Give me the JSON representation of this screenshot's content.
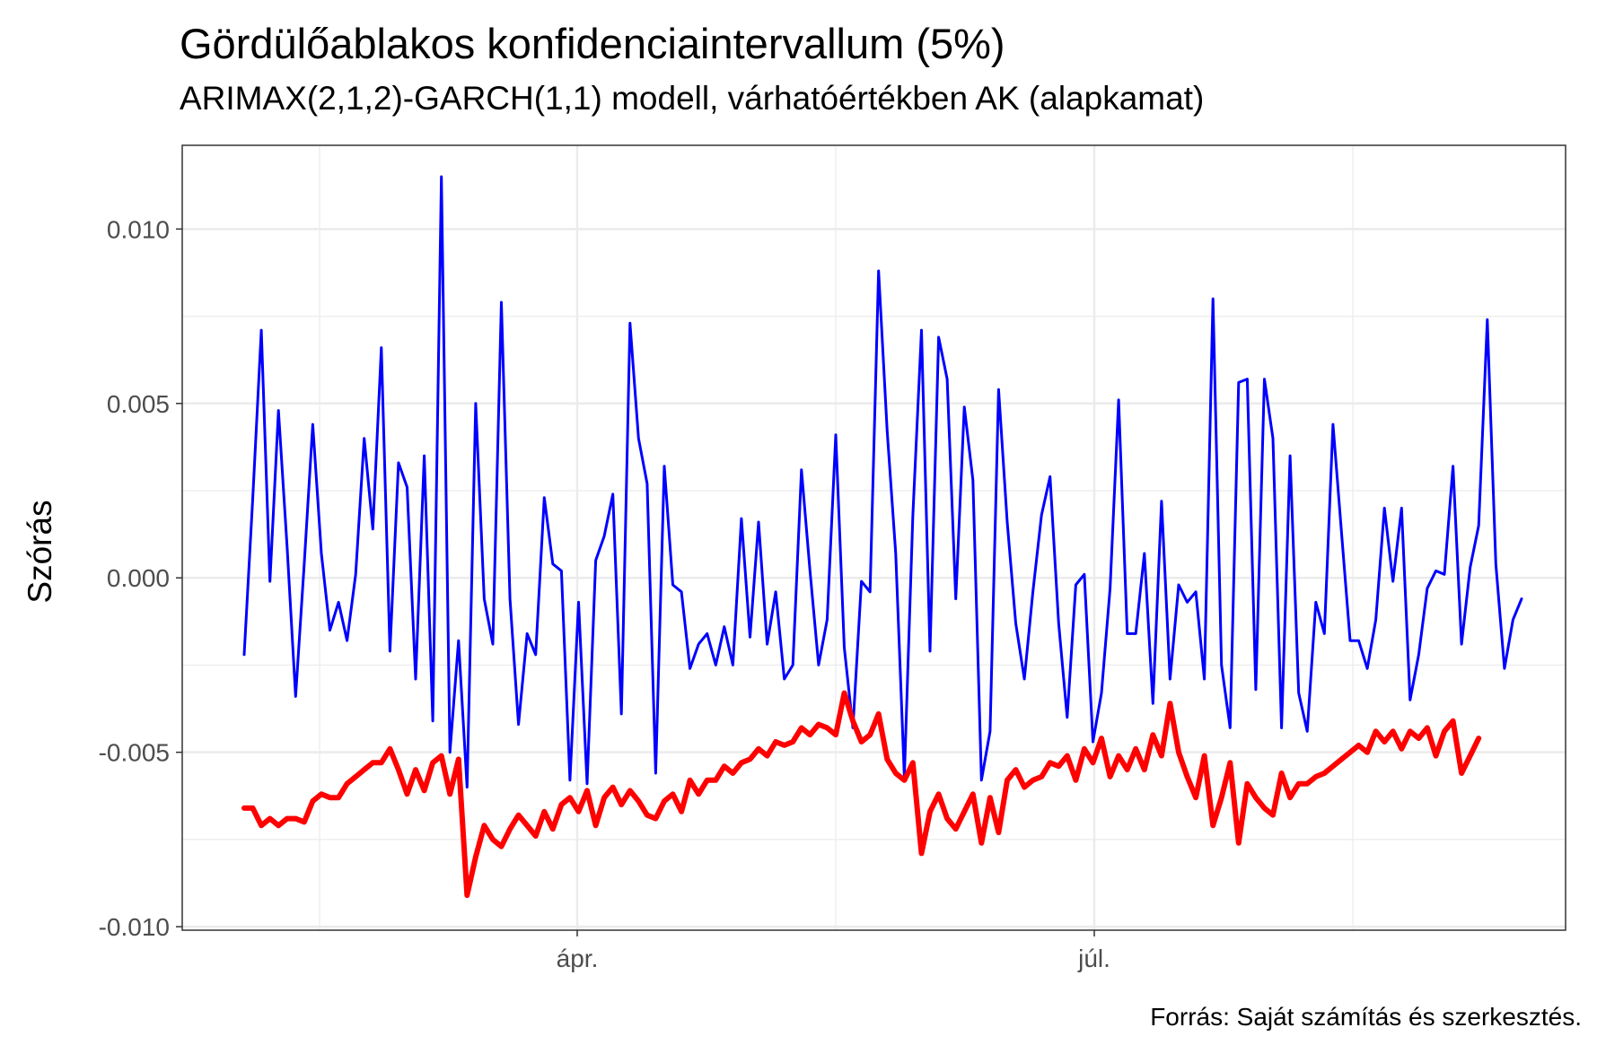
{
  "chart_data": {
    "type": "line",
    "title": "Gördülőablakos konfidenciaintervallum (5%)",
    "subtitle": "ARIMAX(2,1,2)-GARCH(1,1) modell, várhatóértékben AK (alapkamat)",
    "ylabel": "Szórás",
    "xlabel": "",
    "caption": "Forrás: Saját számítás és szerkesztés.",
    "x_ticks": [
      "ápr.",
      "júl."
    ],
    "y_ticks": [
      "0.010",
      "0.005",
      "0.000",
      "-0.005",
      "-0.010"
    ],
    "ylim": [
      -0.0101,
      0.0124
    ],
    "grid": true,
    "legend": "none",
    "series": [
      {
        "color": "#0000ff",
        "values": [
          -0.0022,
          0.0023,
          0.0071,
          -0.0001,
          0.0048,
          0.0009,
          -0.0034,
          0.0004,
          0.0044,
          0.0007,
          -0.0015,
          -0.0007,
          -0.0018,
          0.0001,
          0.004,
          0.0014,
          0.0066,
          -0.0021,
          0.0033,
          0.0026,
          -0.0029,
          0.0035,
          -0.0041,
          0.0115,
          -0.005,
          -0.0018,
          -0.006,
          0.005,
          -0.0006,
          -0.0019,
          0.0079,
          -0.0006,
          -0.0042,
          -0.0016,
          -0.0022,
          0.0023,
          0.0004,
          0.0002,
          -0.0058,
          -0.0007,
          -0.0059,
          0.0005,
          0.0012,
          0.0024,
          -0.0039,
          0.0073,
          0.004,
          0.0027,
          -0.0056,
          0.0032,
          -0.0002,
          -0.0004,
          -0.0026,
          -0.0019,
          -0.0016,
          -0.0025,
          -0.0014,
          -0.0025,
          0.0017,
          -0.0017,
          0.0016,
          -0.0019,
          -0.0004,
          -0.0029,
          -0.0025,
          0.0031,
          0.0002,
          -0.0025,
          -0.0012,
          0.0041,
          -0.002,
          -0.0043,
          -0.0001,
          -0.0004,
          0.0088,
          0.0042,
          0.0007,
          -0.0057,
          0.0018,
          0.0071,
          -0.0021,
          0.0069,
          0.0057,
          -0.0006,
          0.0049,
          0.0028,
          -0.0058,
          -0.0044,
          0.0054,
          0.0016,
          -0.0013,
          -0.0029,
          -0.0004,
          0.0018,
          0.0029,
          -0.0013,
          -0.004,
          -0.0002,
          0.0001,
          -0.0047,
          -0.0033,
          -0.0003,
          0.0051,
          -0.0016,
          -0.0016,
          0.0007,
          -0.0036,
          0.0022,
          -0.0029,
          -0.0002,
          -0.0007,
          -0.0004,
          -0.0029,
          0.008,
          -0.0025,
          -0.0043,
          0.0056,
          0.0057,
          -0.0032,
          0.0057,
          0.004,
          -0.0043,
          0.0035,
          -0.0033,
          -0.0044,
          -0.0007,
          -0.0016,
          0.0044,
          0.0013,
          -0.0018,
          -0.0018,
          -0.0026,
          -0.0012,
          0.002,
          -0.0001,
          0.002,
          -0.0035,
          -0.0022,
          -0.0003,
          0.0002,
          0.0001,
          0.0032,
          -0.0019,
          0.0003,
          0.0015,
          0.0074,
          0.0004,
          -0.0026,
          -0.0012,
          -0.0006
        ]
      },
      {
        "color": "#ff0000",
        "values": [
          -0.0066,
          -0.0066,
          -0.0071,
          -0.0069,
          -0.0071,
          -0.0069,
          -0.0069,
          -0.007,
          -0.0064,
          -0.0062,
          -0.0063,
          -0.0063,
          -0.0059,
          -0.0057,
          -0.0055,
          -0.0053,
          -0.0053,
          -0.0049,
          -0.0055,
          -0.0062,
          -0.0055,
          -0.0061,
          -0.0053,
          -0.0051,
          -0.0062,
          -0.0052,
          -0.0091,
          -0.008,
          -0.0071,
          -0.0075,
          -0.0077,
          -0.0072,
          -0.0068,
          -0.0071,
          -0.0074,
          -0.0067,
          -0.0072,
          -0.0065,
          -0.0063,
          -0.0067,
          -0.0061,
          -0.0071,
          -0.0063,
          -0.006,
          -0.0065,
          -0.0061,
          -0.0064,
          -0.0068,
          -0.0069,
          -0.0064,
          -0.0062,
          -0.0067,
          -0.0058,
          -0.0062,
          -0.0058,
          -0.0058,
          -0.0054,
          -0.0056,
          -0.0053,
          -0.0052,
          -0.0049,
          -0.0051,
          -0.0047,
          -0.0048,
          -0.0047,
          -0.0043,
          -0.0045,
          -0.0042,
          -0.0043,
          -0.0045,
          -0.0033,
          -0.0041,
          -0.0047,
          -0.0045,
          -0.0039,
          -0.0052,
          -0.0056,
          -0.0058,
          -0.0053,
          -0.0079,
          -0.0067,
          -0.0062,
          -0.0069,
          -0.0072,
          -0.0067,
          -0.0062,
          -0.0076,
          -0.0063,
          -0.0073,
          -0.0058,
          -0.0055,
          -0.006,
          -0.0058,
          -0.0057,
          -0.0053,
          -0.0054,
          -0.0051,
          -0.0058,
          -0.0049,
          -0.0053,
          -0.0046,
          -0.0057,
          -0.0051,
          -0.0055,
          -0.0049,
          -0.0055,
          -0.0045,
          -0.0051,
          -0.0036,
          -0.005,
          -0.0057,
          -0.0063,
          -0.0051,
          -0.0071,
          -0.0063,
          -0.0053,
          -0.0076,
          -0.0059,
          -0.0063,
          -0.0066,
          -0.0068,
          -0.0056,
          -0.0063,
          -0.0059,
          -0.0059,
          -0.0057,
          -0.0056,
          -0.0054,
          -0.0052,
          -0.005,
          -0.0048,
          -0.005,
          -0.0044,
          -0.0047,
          -0.0044,
          -0.0049,
          -0.0044,
          -0.0046,
          -0.0043,
          -0.0051,
          -0.0044,
          -0.0041,
          -0.0056,
          -0.0051,
          -0.0046
        ]
      }
    ]
  }
}
